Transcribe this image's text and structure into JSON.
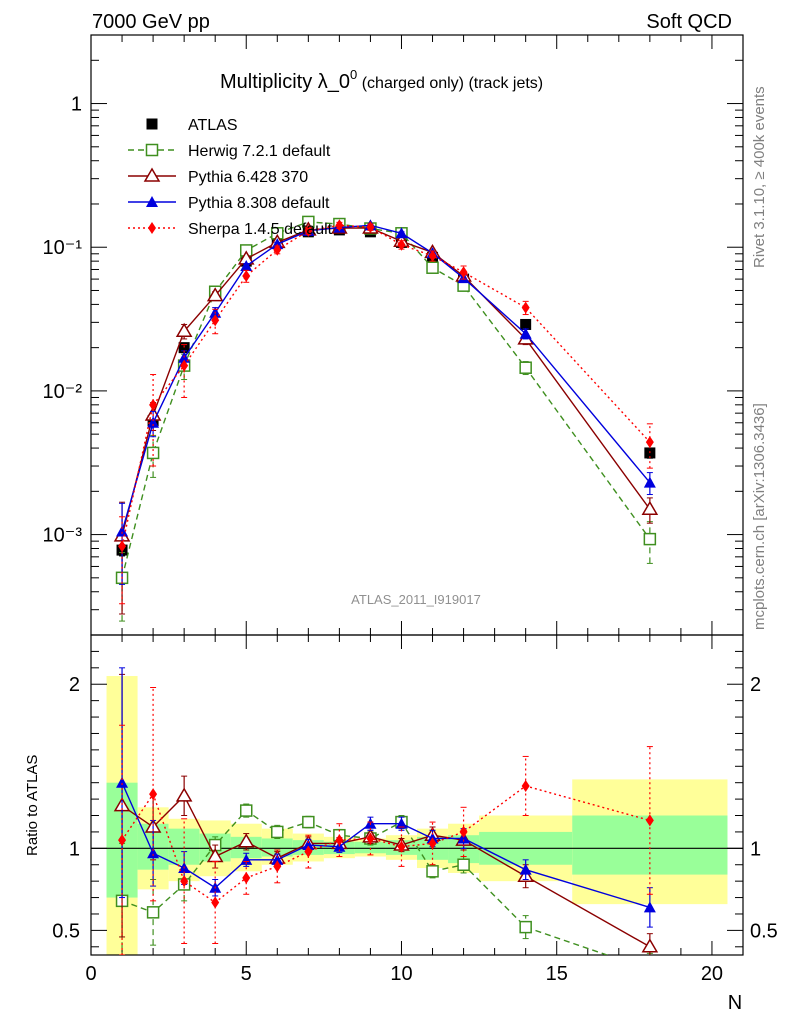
{
  "header": {
    "left": "7000 GeV pp",
    "right": "Soft QCD"
  },
  "side_text": {
    "top": "Rivet 3.1.10, ≥ 400k events",
    "bottom": "mcplots.cern.ch [arXiv:1306.3436]"
  },
  "chart_data": {
    "type": "line",
    "title": "Multiplicity λ_0⁰ (charged only) (track jets)",
    "title_main": "Multiplicity λ_0",
    "title_sup": "0",
    "title_tail": " (charged only) (track jets)",
    "reference_label": "ATLAS_2011_I919017",
    "xlabel": "N",
    "ylabel_ratio": "Ratio to ATLAS",
    "xlim": [
      0,
      21
    ],
    "ylim_main": [
      0.0002,
      3
    ],
    "ylim_ratio": [
      0.35,
      2.3
    ],
    "x_ticks": [
      "0",
      "5",
      "10",
      "15",
      "20"
    ],
    "y_ticks_main": [
      "10⁻³",
      "10⁻²",
      "10⁻¹",
      "1"
    ],
    "y_ticks_ratio": [
      "0.5",
      "1",
      "2"
    ],
    "bins": [
      [
        0.5,
        1.5
      ],
      [
        1.5,
        2.5
      ],
      [
        2.5,
        3.5
      ],
      [
        3.5,
        4.5
      ],
      [
        4.5,
        5.5
      ],
      [
        5.5,
        6.5
      ],
      [
        6.5,
        7.5
      ],
      [
        7.5,
        8.5
      ],
      [
        8.5,
        9.5
      ],
      [
        9.5,
        10.5
      ],
      [
        10.5,
        11.5
      ],
      [
        11.5,
        12.5
      ],
      [
        12.5,
        15.5
      ],
      [
        15.5,
        20.5
      ]
    ],
    "band_inner": [
      [
        0.7,
        1.4
      ],
      [
        0.87,
        1.15
      ],
      [
        0.9,
        1.12
      ],
      [
        0.92,
        1.09
      ],
      [
        0.94,
        1.07
      ],
      [
        0.95,
        1.06
      ],
      [
        0.96,
        1.05
      ],
      [
        0.965,
        1.04
      ],
      [
        0.97,
        1.04
      ],
      [
        0.96,
        1.05
      ],
      [
        0.93,
        1.07
      ],
      [
        0.91,
        1.08
      ],
      [
        0.9,
        1.1
      ],
      [
        0.84,
        1.2
      ]
    ],
    "band_outer": [
      [
        0.3,
        2.05
      ],
      [
        0.75,
        1.25
      ],
      [
        0.8,
        1.18
      ],
      [
        0.83,
        1.17
      ],
      [
        0.86,
        1.15
      ],
      [
        0.9,
        1.12
      ],
      [
        0.92,
        1.09
      ],
      [
        0.94,
        1.07
      ],
      [
        0.95,
        1.06
      ],
      [
        0.93,
        1.08
      ],
      [
        0.88,
        1.12
      ],
      [
        0.85,
        1.15
      ],
      [
        0.8,
        1.2
      ],
      [
        0.66,
        1.42
      ]
    ],
    "series": [
      {
        "name": "ATLAS",
        "color": "#000000",
        "marker": "square-filled",
        "dash": "",
        "x": [
          1,
          2,
          3,
          4,
          5,
          6,
          7,
          8,
          9,
          10,
          11,
          12,
          14,
          18
        ],
        "y": [
          0.00078,
          0.0062,
          0.02,
          0.048,
          0.08,
          0.115,
          0.128,
          0.132,
          0.128,
          0.108,
          0.085,
          0.06,
          0.029,
          0.0037
        ],
        "yerr": [
          7e-05,
          0.0002,
          0.0006,
          0.001,
          0.0015,
          0.002,
          0.002,
          0.002,
          0.002,
          0.002,
          0.002,
          0.0015,
          0.001,
          0.0003
        ]
      },
      {
        "name": "Herwig 7.2.1 default",
        "color": "#3f8f1f",
        "marker": "square-open",
        "dash": "6,4",
        "x": [
          1,
          2,
          3,
          4,
          5,
          6,
          7,
          8,
          9,
          10,
          11,
          12,
          14,
          18
        ],
        "y": [
          0.0005,
          0.0037,
          0.015,
          0.049,
          0.095,
          0.125,
          0.15,
          0.145,
          0.135,
          0.125,
          0.072,
          0.054,
          0.0145,
          0.00093
        ],
        "yerr": [
          0.00025,
          0.0012,
          0.003,
          0.003,
          0.003,
          0.003,
          0.003,
          0.003,
          0.003,
          0.003,
          0.003,
          0.003,
          0.0015,
          0.0003
        ],
        "ratio": [
          0.68,
          0.61,
          0.78,
          1.02,
          1.23,
          1.1,
          1.16,
          1.08,
          1.06,
          1.16,
          0.86,
          0.9,
          0.52,
          0.26
        ],
        "ratio_err": [
          0.35,
          0.2,
          0.1,
          0.05,
          0.04,
          0.04,
          0.035,
          0.035,
          0.04,
          0.04,
          0.04,
          0.05,
          0.07,
          0.1
        ]
      },
      {
        "name": "Pythia 6.428 370",
        "color": "#8b0000",
        "marker": "triangle-open",
        "dash": "",
        "x": [
          1,
          2,
          3,
          4,
          5,
          6,
          7,
          8,
          9,
          10,
          11,
          12,
          14,
          18
        ],
        "y": [
          0.00098,
          0.0068,
          0.026,
          0.046,
          0.083,
          0.108,
          0.132,
          0.136,
          0.136,
          0.11,
          0.092,
          0.063,
          0.023,
          0.0015
        ],
        "yerr": [
          0.0007,
          0.0015,
          0.003,
          0.003,
          0.003,
          0.003,
          0.003,
          0.003,
          0.003,
          0.003,
          0.003,
          0.003,
          0.002,
          0.0003
        ],
        "ratio": [
          1.26,
          1.13,
          1.32,
          0.95,
          1.04,
          0.94,
          1.03,
          1.03,
          1.07,
          1.02,
          1.08,
          1.05,
          0.83,
          0.4
        ],
        "ratio_err": [
          0.8,
          0.2,
          0.12,
          0.07,
          0.05,
          0.04,
          0.04,
          0.035,
          0.04,
          0.04,
          0.05,
          0.06,
          0.07,
          0.08
        ]
      },
      {
        "name": "Pythia 8.308 default",
        "color": "#0000dd",
        "marker": "triangle-filled",
        "dash": "",
        "x": [
          1,
          2,
          3,
          4,
          5,
          6,
          7,
          8,
          9,
          10,
          11,
          12,
          14,
          18
        ],
        "y": [
          0.00105,
          0.006,
          0.017,
          0.035,
          0.074,
          0.105,
          0.13,
          0.137,
          0.142,
          0.125,
          0.091,
          0.061,
          0.025,
          0.0023
        ],
        "yerr": [
          0.0006,
          0.0012,
          0.002,
          0.003,
          0.003,
          0.003,
          0.003,
          0.003,
          0.003,
          0.003,
          0.003,
          0.003,
          0.002,
          0.0004
        ],
        "ratio": [
          1.4,
          0.97,
          0.88,
          0.76,
          0.93,
          0.93,
          1.02,
          1.01,
          1.15,
          1.15,
          1.06,
          1.06,
          0.87,
          0.64
        ],
        "ratio_err": [
          0.7,
          0.2,
          0.1,
          0.05,
          0.04,
          0.035,
          0.035,
          0.035,
          0.04,
          0.04,
          0.05,
          0.06,
          0.06,
          0.12
        ]
      },
      {
        "name": "Sherpa 1.4.5 default",
        "color": "#ff0000",
        "marker": "diamond-filled",
        "dash": "2,3",
        "x": [
          1,
          2,
          3,
          4,
          5,
          6,
          7,
          8,
          9,
          10,
          11,
          12,
          14,
          18
        ],
        "y": [
          0.00083,
          0.008,
          0.015,
          0.031,
          0.063,
          0.096,
          0.13,
          0.142,
          0.138,
          0.104,
          0.087,
          0.067,
          0.038,
          0.0044
        ],
        "yerr": [
          0.0005,
          0.005,
          0.006,
          0.006,
          0.006,
          0.006,
          0.007,
          0.007,
          0.007,
          0.007,
          0.007,
          0.007,
          0.004,
          0.0015
        ],
        "ratio": [
          1.05,
          1.33,
          0.8,
          0.67,
          0.82,
          0.89,
          0.98,
          1.05,
          1.06,
          1.01,
          1.03,
          1.1,
          1.38,
          1.17
        ],
        "ratio_err": [
          0.7,
          0.65,
          0.38,
          0.25,
          0.1,
          0.1,
          0.1,
          0.1,
          0.1,
          0.12,
          0.13,
          0.15,
          0.18,
          0.45
        ]
      }
    ]
  }
}
